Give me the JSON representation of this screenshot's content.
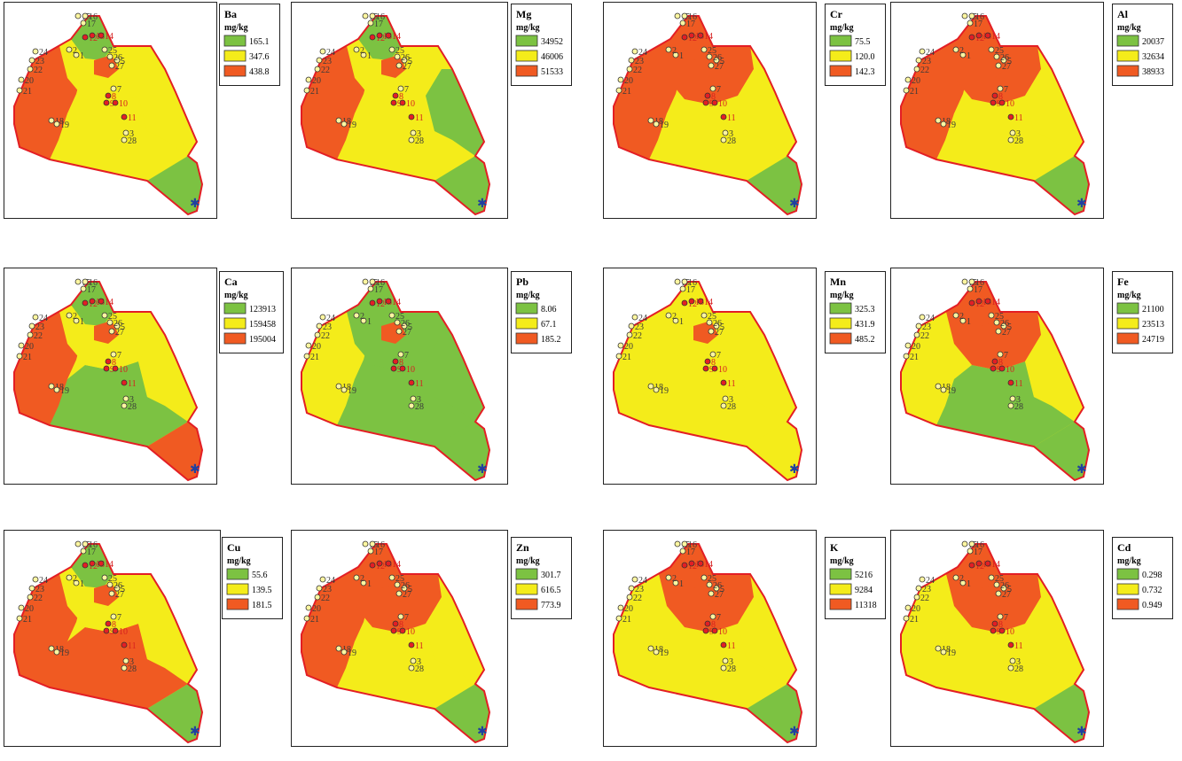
{
  "unit_label": "mg/kg",
  "class_colors": [
    "#7cc242",
    "#f4ec1a",
    "#f05a22"
  ],
  "border_color": "#e31e24",
  "maps": [
    {
      "element": "Ba",
      "values": [
        "165.1",
        "347.6",
        "438.8"
      ]
    },
    {
      "element": "Mg",
      "values": [
        "34952",
        "46006",
        "51533"
      ]
    },
    {
      "element": "Cr",
      "values": [
        "75.5",
        "120.0",
        "142.3"
      ]
    },
    {
      "element": "Al",
      "values": [
        "20037",
        "32634",
        "38933"
      ]
    },
    {
      "element": "Ca",
      "values": [
        "123913",
        "159458",
        "195004"
      ]
    },
    {
      "element": "Pb",
      "values": [
        "8.06",
        "67.1",
        "185.2"
      ]
    },
    {
      "element": "Mn",
      "values": [
        "325.3",
        "431.9",
        "485.2"
      ]
    },
    {
      "element": "Fe",
      "values": [
        "21100",
        "23513",
        "24719"
      ]
    },
    {
      "element": "Cu",
      "values": [
        "55.6",
        "139.5",
        "181.5"
      ]
    },
    {
      "element": "Zn",
      "values": [
        "301.7",
        "616.5",
        "773.9"
      ]
    },
    {
      "element": "K",
      "values": [
        "5216",
        "9284",
        "11318"
      ]
    },
    {
      "element": "Cd",
      "values": [
        "0.298",
        "0.732",
        "0.949"
      ]
    }
  ],
  "site_labels": [
    "1",
    "2",
    "3",
    "5",
    "7",
    "8",
    "9",
    "10",
    "11",
    "12",
    "13",
    "14",
    "15",
    "16",
    "17",
    "18",
    "19",
    "20",
    "21",
    "22",
    "23",
    "24",
    "25",
    "26",
    "27",
    "28"
  ]
}
